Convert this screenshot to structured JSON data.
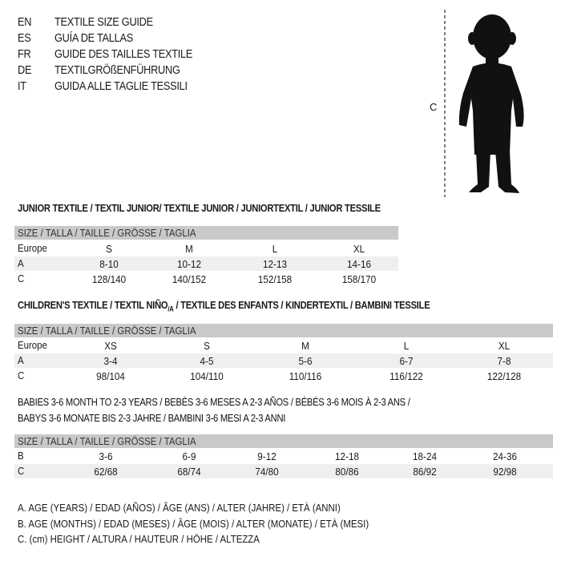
{
  "header": {
    "languages": [
      {
        "code": "EN",
        "text": "TEXTILE SIZE GUIDE"
      },
      {
        "code": "ES",
        "text": "GUÍA DE TALLAS"
      },
      {
        "code": "FR",
        "text": "GUIDE DES TAILLES TEXTILE"
      },
      {
        "code": "DE",
        "text": "TEXTILGRÖßENFÜHRUNG"
      },
      {
        "code": "IT",
        "text": "GUIDA ALLE TAGLIE TESSILI"
      }
    ]
  },
  "figure": {
    "icon": "child-silhouette-icon",
    "measure_label": "C"
  },
  "junior": {
    "title": "JUNIOR TEXTILE / TEXTIL JUNIOR/ TEXTILE JUNIOR / JUNIORTEXTIL / JUNIOR TESSILE",
    "header": "SIZE / TALLA / TAILLE / GRÖSSE / TAGLIA",
    "rows": [
      {
        "label": "Europe",
        "values": [
          "S",
          "M",
          "L",
          "XL"
        ]
      },
      {
        "label": "A",
        "values": [
          "8-10",
          "10-12",
          "12-13",
          "14-16"
        ]
      },
      {
        "label": "C",
        "values": [
          "128/140",
          "140/152",
          "152/158",
          "158/170"
        ]
      }
    ]
  },
  "children": {
    "title_main": "CHILDREN'S TEXTILE / TEXTIL NIÑO",
    "title_sub": "/A",
    "title_rest": " / TEXTILE DES ENFANTS / KINDERTEXTIL / BAMBINI TESSILE",
    "header": "SIZE / TALLA / TAILLE / GRÖSSE / TAGLIA",
    "rows": [
      {
        "label": "Europe",
        "values": [
          "XS",
          "S",
          "M",
          "L",
          "XL"
        ]
      },
      {
        "label": "A",
        "values": [
          "3-4",
          "4-5",
          "5-6",
          "6-7",
          "7-8"
        ]
      },
      {
        "label": "C",
        "values": [
          "98/104",
          "104/110",
          "110/116",
          "116/122",
          "122/128"
        ]
      }
    ]
  },
  "babies": {
    "title_line1": "BABIES 3-6 MONTH TO 2-3 YEARS / BEBÉS 3-6 MESES A 2-3 AÑOS / BÉBÉS 3-6 MOIS À 2-3 ANS /",
    "title_line2": "BABYS 3-6 MONATE BIS 2-3 JAHRE / BAMBINI 3-6 MESI A 2-3 ANNI",
    "header": "SIZE / TALLA / TAILLE / GRÖSSE / TAGLIA",
    "rows": [
      {
        "label": "B",
        "values": [
          "3-6",
          "6-9",
          "9-12",
          "12-18",
          "18-24",
          "24-36"
        ]
      },
      {
        "label": "C",
        "values": [
          "62/68",
          "68/74",
          "74/80",
          "80/86",
          "86/92",
          "92/98"
        ]
      }
    ]
  },
  "legend": [
    "A. AGE (YEARS) / EDAD (AÑOS) / ÂGE (ANS) / ALTER (JAHRE) / ETÀ (ANNI)",
    "B. AGE (MONTHS) / EDAD (MESES) / ÂGE (MOIS) / ALTER (MONATE) / ETÀ (MESI)",
    "C. (cm) HEIGHT / ALTURA / HAUTEUR / HÖHE / ALTEZZA"
  ],
  "colors": {
    "header_bar": "#c9c9c9",
    "stripe": "#efefef"
  }
}
